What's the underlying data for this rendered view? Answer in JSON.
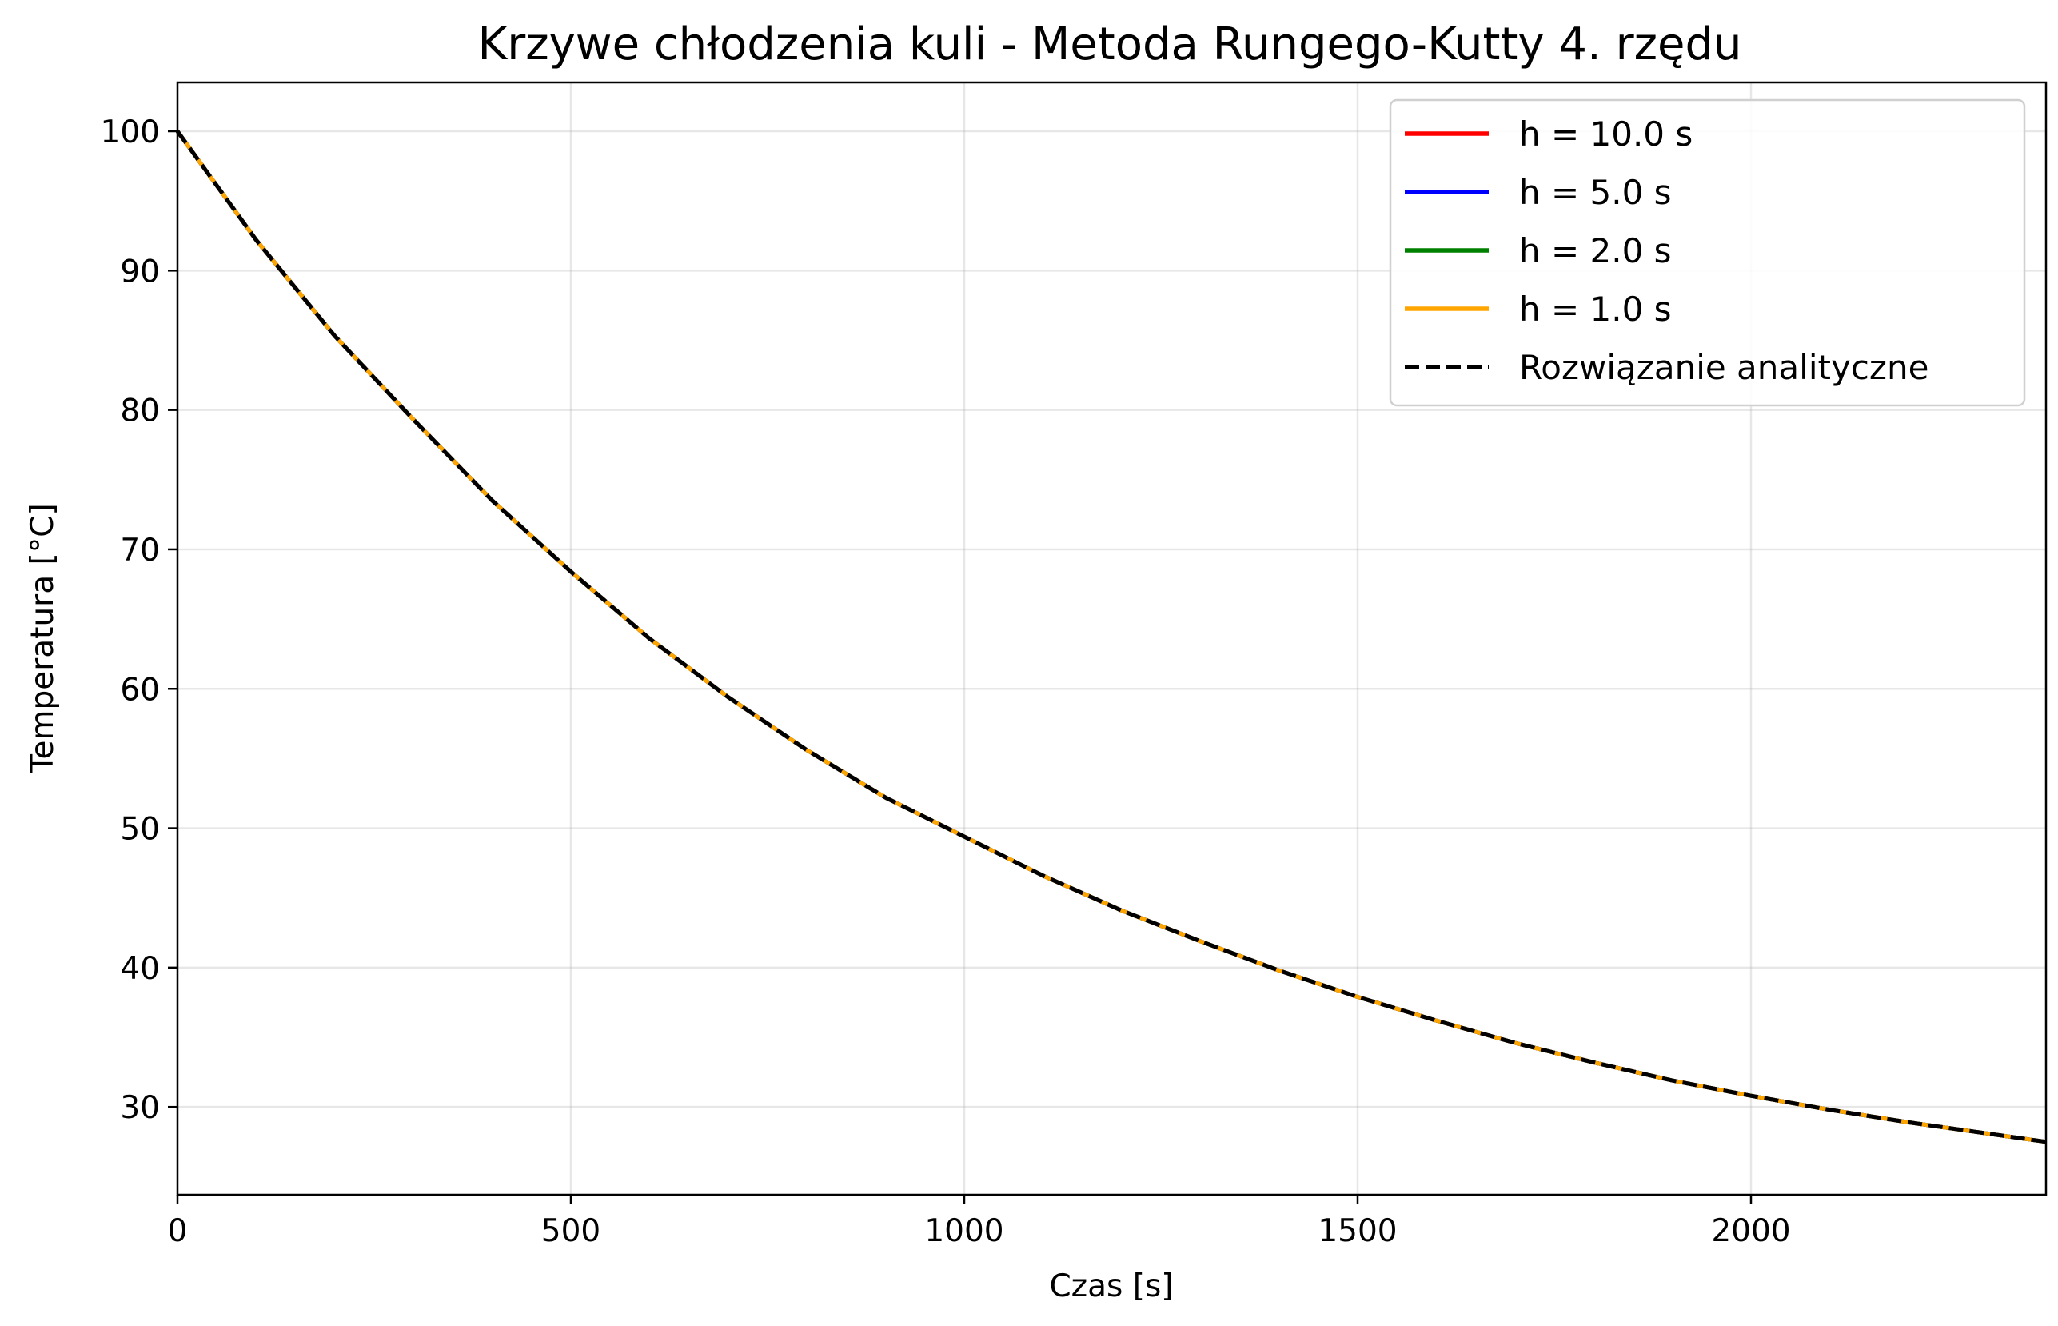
{
  "chart_data": {
    "type": "line",
    "title": "Krzywe chłodzenia kuli - Metoda Rungego-Kutty 4. rzędu",
    "xlabel": "Czas [s]",
    "ylabel": "Temperatura [°C]",
    "xlim": [
      0,
      2375
    ],
    "ylim": [
      23.7,
      103.5
    ],
    "xticks": [
      0,
      500,
      1000,
      1500,
      2000
    ],
    "yticks": [
      30,
      40,
      50,
      60,
      70,
      80,
      90,
      100
    ],
    "grid": true,
    "legend_position": "top-right",
    "x": [
      0,
      100,
      200,
      300,
      400,
      500,
      600,
      700,
      800,
      900,
      1000,
      1100,
      1200,
      1300,
      1400,
      1500,
      1600,
      1700,
      1800,
      1900,
      2000,
      2100,
      2200,
      2300,
      2375
    ],
    "series": [
      {
        "name": "h = 10.0 s",
        "color": "#ff0000",
        "style": "solid",
        "values": [
          100,
          92.2,
          85.3,
          79.3,
          73.5,
          68.4,
          63.6,
          59.4,
          55.6,
          52.2,
          49.4,
          46.6,
          44.1,
          41.9,
          39.8,
          37.9,
          36.2,
          34.6,
          33.2,
          31.9,
          30.8,
          29.8,
          28.9,
          28.1,
          27.5
        ]
      },
      {
        "name": "h = 5.0 s",
        "color": "#0000ff",
        "style": "solid",
        "values": [
          100,
          92.2,
          85.3,
          79.3,
          73.5,
          68.4,
          63.6,
          59.4,
          55.6,
          52.2,
          49.4,
          46.6,
          44.1,
          41.9,
          39.8,
          37.9,
          36.2,
          34.6,
          33.2,
          31.9,
          30.8,
          29.8,
          28.9,
          28.1,
          27.5
        ]
      },
      {
        "name": "h = 2.0 s",
        "color": "#008000",
        "style": "solid",
        "values": [
          100,
          92.2,
          85.3,
          79.3,
          73.5,
          68.4,
          63.6,
          59.4,
          55.6,
          52.2,
          49.4,
          46.6,
          44.1,
          41.9,
          39.8,
          37.9,
          36.2,
          34.6,
          33.2,
          31.9,
          30.8,
          29.8,
          28.9,
          28.1,
          27.5
        ]
      },
      {
        "name": "h = 1.0 s",
        "color": "#ffa500",
        "style": "solid",
        "values": [
          100,
          92.2,
          85.3,
          79.3,
          73.5,
          68.4,
          63.6,
          59.4,
          55.6,
          52.2,
          49.4,
          46.6,
          44.1,
          41.9,
          39.8,
          37.9,
          36.2,
          34.6,
          33.2,
          31.9,
          30.8,
          29.8,
          28.9,
          28.1,
          27.5
        ]
      },
      {
        "name": "Rozwiązanie analityczne",
        "color": "#000000",
        "style": "dashed",
        "values": [
          100,
          92.2,
          85.3,
          79.3,
          73.5,
          68.4,
          63.6,
          59.4,
          55.6,
          52.2,
          49.4,
          46.6,
          44.1,
          41.9,
          39.8,
          37.9,
          36.2,
          34.6,
          33.2,
          31.9,
          30.8,
          29.8,
          28.9,
          28.1,
          27.5
        ]
      }
    ]
  }
}
